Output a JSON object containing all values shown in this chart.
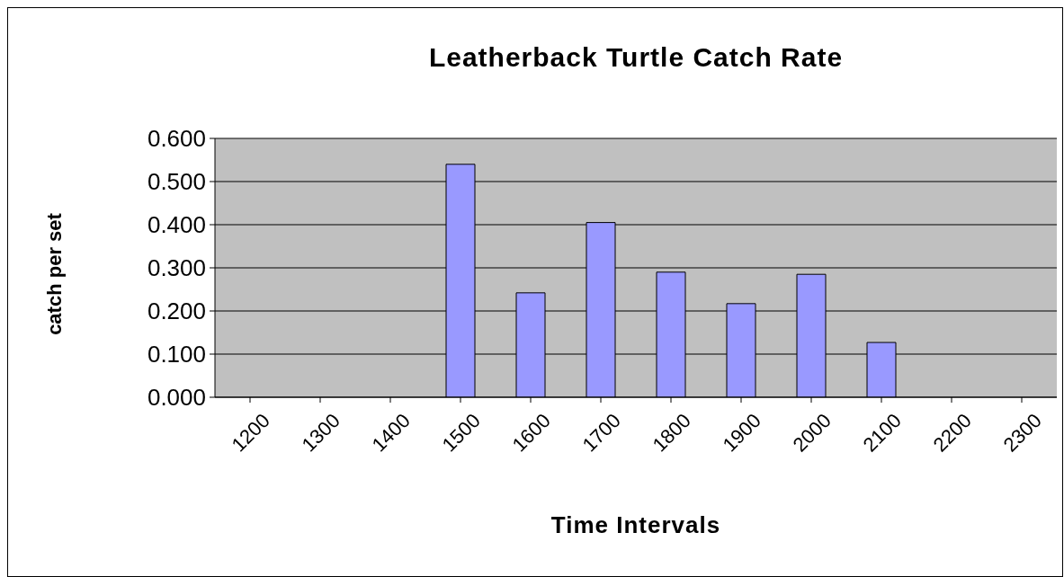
{
  "chart_data": {
    "type": "bar",
    "title": "Leatherback Turtle Catch Rate",
    "xlabel": "Time Intervals",
    "ylabel": "catch per set",
    "categories": [
      "1200",
      "1300",
      "1400",
      "1500",
      "1600",
      "1700",
      "1800",
      "1900",
      "2000",
      "2100",
      "2200",
      "2300"
    ],
    "values": [
      null,
      null,
      null,
      0.54,
      0.242,
      0.405,
      0.29,
      0.217,
      0.285,
      0.127,
      null,
      null
    ],
    "color": "#9999ff",
    "ylim": [
      0,
      0.6
    ],
    "yticks": [
      {
        "value": 0,
        "label": "0.000"
      },
      {
        "value": 0.1,
        "label": "0.100"
      },
      {
        "value": 0.2,
        "label": "0.200"
      },
      {
        "value": 0.3,
        "label": "0.300"
      },
      {
        "value": 0.4,
        "label": "0.400"
      },
      {
        "value": 0.5,
        "label": "0.500"
      },
      {
        "value": 0.6,
        "label": "0.600"
      }
    ],
    "grid": "y",
    "legend": false
  }
}
